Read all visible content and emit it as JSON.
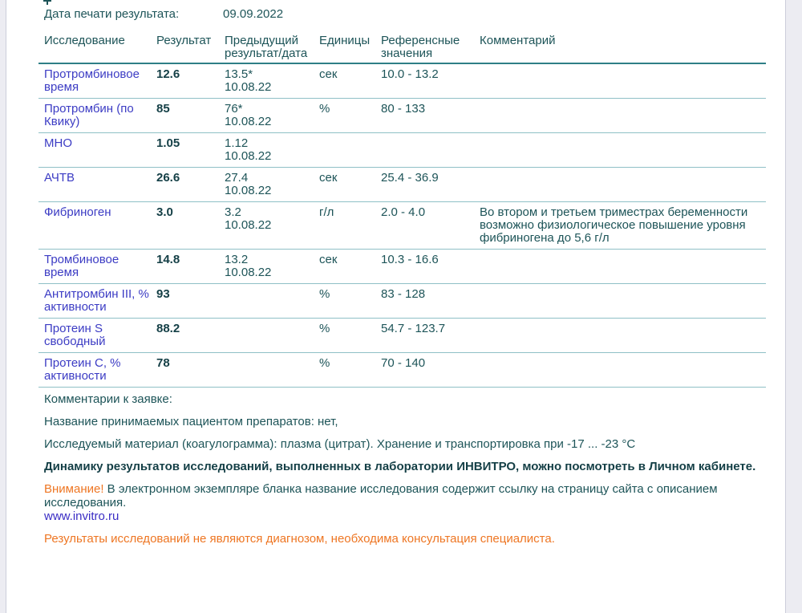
{
  "page": {
    "print_date_label": "Дата печати результата:",
    "print_date_value": "09.09.2022"
  },
  "table": {
    "headers": [
      "Исследование",
      "Результат",
      "Предыдущий результат/дата",
      "Единицы",
      "Референсные значения",
      "Комментарий"
    ],
    "rows": [
      {
        "name": "Протромбиновое время",
        "result": "12.6",
        "prev": "13.5*",
        "prev_date": "10.08.22",
        "units": "сек",
        "ref": "10.0 - 13.2",
        "comment": ""
      },
      {
        "name": "Протромбин (по Квику)",
        "result": "85",
        "prev": "76*",
        "prev_date": "10.08.22",
        "units": "%",
        "ref": "80 - 133",
        "comment": ""
      },
      {
        "name": "МНО",
        "result": "1.05",
        "prev": "1.12",
        "prev_date": "10.08.22",
        "units": "",
        "ref": "",
        "comment": ""
      },
      {
        "name": "АЧТВ",
        "result": "26.6",
        "prev": "27.4",
        "prev_date": "10.08.22",
        "units": "сек",
        "ref": "25.4 - 36.9",
        "comment": ""
      },
      {
        "name": "Фибриноген",
        "result": "3.0",
        "prev": "3.2",
        "prev_date": "10.08.22",
        "units": "г/л",
        "ref": "2.0 - 4.0",
        "comment": "Во втором и третьем триместрах беременности возможно физиологическое повышение уровня фибриногена до 5,6 г/л"
      },
      {
        "name": "Тромбиновое время",
        "result": "14.8",
        "prev": "13.2",
        "prev_date": "10.08.22",
        "units": "сек",
        "ref": "10.3 - 16.6",
        "comment": ""
      },
      {
        "name": "Антитромбин III, % активности",
        "result": "93",
        "prev": "",
        "prev_date": "",
        "units": "%",
        "ref": "83 - 128",
        "comment": ""
      },
      {
        "name": "Протеин S свободный",
        "result": "88.2",
        "prev": "",
        "prev_date": "",
        "units": "%",
        "ref": "54.7 - 123.7",
        "comment": ""
      },
      {
        "name": "Протеин C, % активности",
        "result": "78",
        "prev": "",
        "prev_date": "",
        "units": "%",
        "ref": "70 - 140",
        "comment": ""
      }
    ]
  },
  "footer": {
    "comments_label": "Комментарии к заявке:",
    "medications": "Название принимаемых пациентом препаратов: нет,",
    "material": "Исследуемый материал (коагулограмма): плазма (цитрат). Хранение и транспортировка при -17 ... -23 °C",
    "dynamics_note": "Динамику результатов исследований, выполненных в лаборатории ИНВИТРО, можно посмотреть в Личном кабинете.",
    "attention_label": "Внимание!",
    "attention_text": " В электронном экземпляре бланка название исследования содержит ссылку на страницу сайта с описанием исследования.",
    "website": "www.invitro.ru",
    "disclaimer": "Результаты исследований не являются диагнозом, необходима консультация специалиста."
  },
  "colors": {
    "teal-text": "#1d5458",
    "teal-dark": "#143f46",
    "blue-name": "#3c3cc4",
    "blue-link": "#3a2dc4",
    "orange": "#ee7623",
    "row-line": "#8fc0c6",
    "header-line": "#2e7f86",
    "margin-bg": "#ececf2"
  }
}
